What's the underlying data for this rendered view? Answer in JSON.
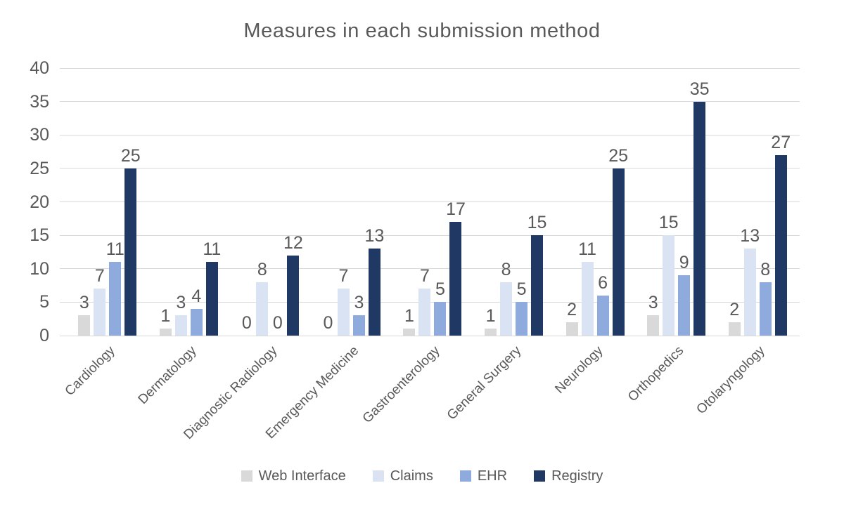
{
  "chart_data": {
    "type": "bar",
    "title": "Measures in each submission method",
    "categories": [
      "Cardiology",
      "Dermatology",
      "Diagnostic Radiology",
      "Emergency Medicine",
      "Gastroenterology",
      "General Surgery",
      "Neurology",
      "Orthopedics",
      "Otolaryngology"
    ],
    "series": [
      {
        "name": "Web Interface",
        "color": "#d9d9d9",
        "values": [
          3,
          1,
          0,
          0,
          1,
          1,
          2,
          3,
          2
        ]
      },
      {
        "name": "Claims",
        "color": "#dae3f3",
        "values": [
          7,
          3,
          8,
          7,
          7,
          8,
          11,
          15,
          13
        ]
      },
      {
        "name": "EHR",
        "color": "#8faadc",
        "values": [
          11,
          4,
          0,
          3,
          5,
          5,
          6,
          9,
          8
        ]
      },
      {
        "name": "Registry",
        "color": "#1f3864",
        "values": [
          25,
          11,
          12,
          13,
          17,
          15,
          25,
          35,
          27
        ]
      }
    ],
    "y_axis": {
      "min": 0,
      "max": 40,
      "step": 5,
      "ticks": [
        0,
        5,
        10,
        15,
        20,
        25,
        30,
        35,
        40
      ]
    },
    "xlabel": "",
    "ylabel": "",
    "grid": "horizontal",
    "legend_position": "bottom",
    "data_labels": true,
    "category_label_rotation_deg": 45
  },
  "style": {
    "text_color": "#595959",
    "grid_color": "#d9d9d9",
    "background": "#ffffff"
  }
}
